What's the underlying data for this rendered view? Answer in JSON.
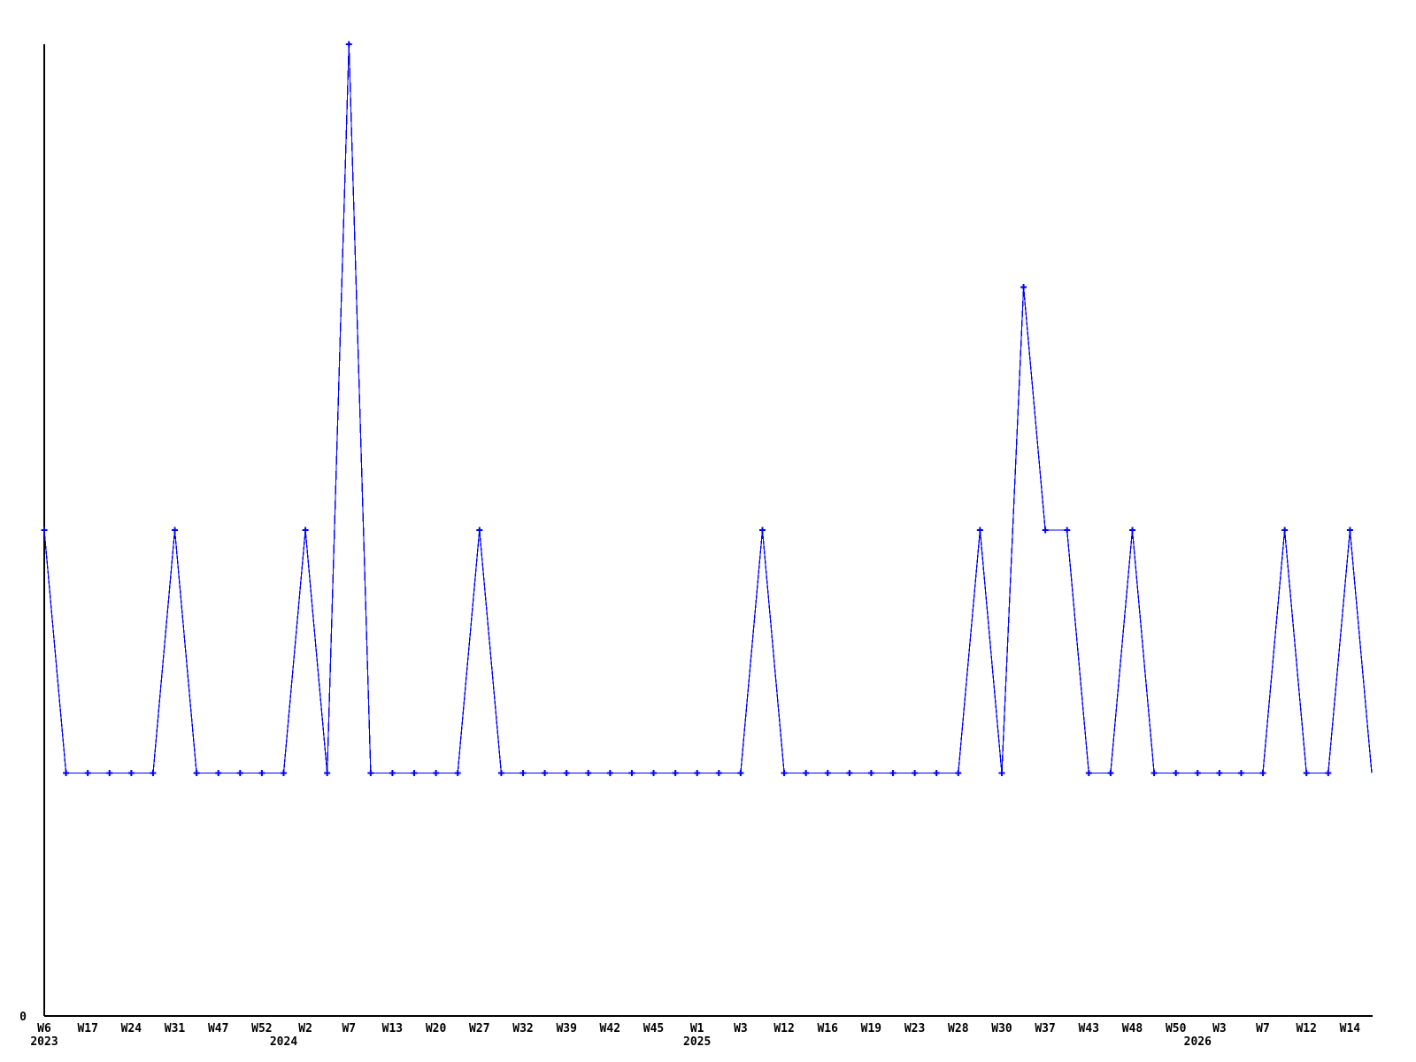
{
  "chart_data": {
    "type": "line",
    "title": "",
    "xlabel": "",
    "ylabel": "",
    "ylim": [
      0,
      4
    ],
    "grid": false,
    "legend": false,
    "y_origin_label": "0",
    "series_color": "#0000ff",
    "axis_color": "#000000",
    "label_color": "#000000",
    "background": "#ffffff",
    "x_tick_years": [
      "2023",
      "2024",
      "2025",
      "2026"
    ],
    "points": [
      {
        "week": "W6",
        "year": "2023",
        "value": 2
      },
      {
        "week": "",
        "value": 1
      },
      {
        "week": "W17",
        "value": 1
      },
      {
        "week": "",
        "value": 1
      },
      {
        "week": "W24",
        "value": 1
      },
      {
        "week": "",
        "value": 1
      },
      {
        "week": "W31",
        "value": 2
      },
      {
        "week": "",
        "value": 1
      },
      {
        "week": "W47",
        "value": 1
      },
      {
        "week": "",
        "value": 1
      },
      {
        "week": "W52",
        "value": 1
      },
      {
        "week": "",
        "year": "2024",
        "value": 1
      },
      {
        "week": "W2",
        "value": 2
      },
      {
        "week": "",
        "value": 1
      },
      {
        "week": "W7",
        "value": 4
      },
      {
        "week": "",
        "value": 1
      },
      {
        "week": "W13",
        "value": 1
      },
      {
        "week": "",
        "value": 1
      },
      {
        "week": "W20",
        "value": 1
      },
      {
        "week": "",
        "value": 1
      },
      {
        "week": "W27",
        "value": 2
      },
      {
        "week": "",
        "value": 1
      },
      {
        "week": "W32",
        "value": 1
      },
      {
        "week": "",
        "value": 1
      },
      {
        "week": "W39",
        "value": 1
      },
      {
        "week": "",
        "value": 1
      },
      {
        "week": "W42",
        "value": 1
      },
      {
        "week": "",
        "value": 1
      },
      {
        "week": "W45",
        "value": 1
      },
      {
        "week": "",
        "value": 1
      },
      {
        "week": "W1",
        "year": "2025",
        "value": 1
      },
      {
        "week": "",
        "value": 1
      },
      {
        "week": "W3",
        "value": 1
      },
      {
        "week": "",
        "value": 2
      },
      {
        "week": "W12",
        "value": 1
      },
      {
        "week": "",
        "value": 1
      },
      {
        "week": "W16",
        "value": 1
      },
      {
        "week": "",
        "value": 1
      },
      {
        "week": "W19",
        "value": 1
      },
      {
        "week": "",
        "value": 1
      },
      {
        "week": "W23",
        "value": 1
      },
      {
        "week": "",
        "value": 1
      },
      {
        "week": "W28",
        "value": 1
      },
      {
        "week": "",
        "value": 2
      },
      {
        "week": "W30",
        "value": 1
      },
      {
        "week": "",
        "value": 3
      },
      {
        "week": "W37",
        "value": 2
      },
      {
        "week": "",
        "value": 2
      },
      {
        "week": "W43",
        "value": 1
      },
      {
        "week": "",
        "value": 1
      },
      {
        "week": "W48",
        "value": 2
      },
      {
        "week": "",
        "value": 1
      },
      {
        "week": "W50",
        "value": 1
      },
      {
        "week": "",
        "year": "2026",
        "value": 1
      },
      {
        "week": "W3",
        "value": 1
      },
      {
        "week": "",
        "value": 1
      },
      {
        "week": "W7",
        "value": 1
      },
      {
        "week": "",
        "value": 2
      },
      {
        "week": "W12",
        "value": 1
      },
      {
        "week": "",
        "value": 1
      },
      {
        "week": "W14",
        "value": 2
      },
      {
        "week": "",
        "value": 1,
        "marker": false
      }
    ]
  }
}
